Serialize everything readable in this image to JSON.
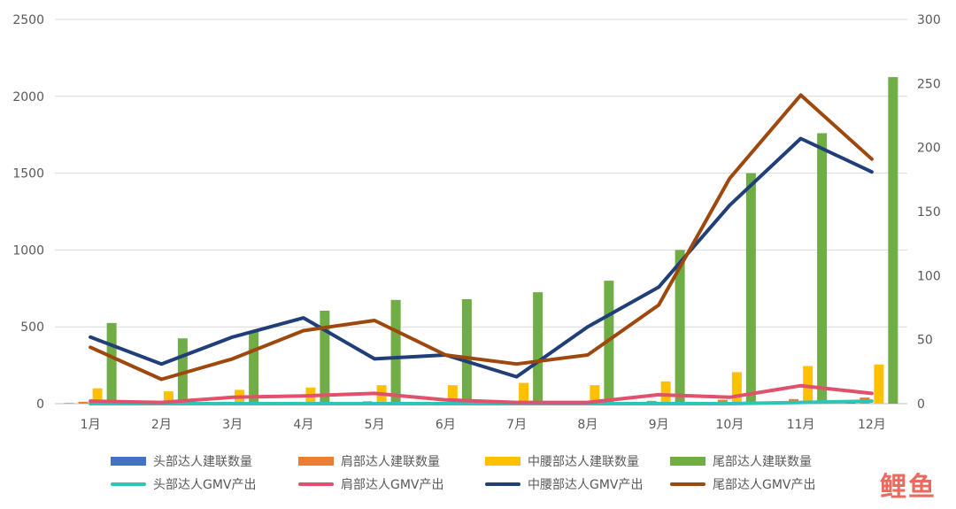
{
  "chart_data": {
    "type": "bar",
    "categories": [
      "1月",
      "2月",
      "3月",
      "4月",
      "5月",
      "6月",
      "7月",
      "8月",
      "9月",
      "10月",
      "11月",
      "12月"
    ],
    "y_left": {
      "ticks": [
        "0",
        "500",
        "1000",
        "1500",
        "2000",
        "2500"
      ],
      "lim": [
        0,
        2500
      ]
    },
    "y_right": {
      "ticks": [
        "0",
        "50",
        "100",
        "150",
        "200",
        "250",
        "300"
      ],
      "lim": [
        0,
        300
      ]
    },
    "grid": true,
    "legend_position": "bottom",
    "bar_series": [
      {
        "name": "头部达人建联数量",
        "color": "#4472C4",
        "values": [
          3,
          2,
          3,
          3,
          3,
          3,
          2,
          3,
          4,
          5,
          8,
          12
        ]
      },
      {
        "name": "肩部达人建联数量",
        "color": "#ED7D31",
        "values": [
          12,
          8,
          12,
          12,
          15,
          12,
          10,
          12,
          18,
          25,
          30,
          40
        ]
      },
      {
        "name": "中腰部达人建联数量",
        "color": "#FFC000",
        "values": [
          100,
          80,
          90,
          105,
          120,
          120,
          135,
          120,
          145,
          205,
          245,
          255
        ]
      },
      {
        "name": "尾部达人建联数量",
        "color": "#70AD47",
        "values": [
          525,
          425,
          475,
          605,
          675,
          680,
          725,
          800,
          1000,
          1500,
          1760,
          2125
        ]
      }
    ],
    "line_series": [
      {
        "name": "头部达人GMV产出",
        "color": "#2EC4B6",
        "values": [
          0,
          0,
          0,
          0,
          0,
          0,
          0,
          0,
          0,
          0,
          1,
          2
        ]
      },
      {
        "name": "肩部达人GMV产出",
        "color": "#E0516B",
        "values": [
          2,
          1,
          5,
          6,
          8,
          3,
          1,
          1,
          7,
          5,
          14,
          8
        ]
      },
      {
        "name": "中腰部达人GMV产出",
        "color": "#203F78",
        "values": [
          52,
          31,
          52,
          67,
          35,
          38,
          21,
          60,
          91,
          155,
          207,
          181
        ]
      },
      {
        "name": "尾部达人GMV产出",
        "color": "#9E480E",
        "values": [
          44,
          19,
          35,
          57,
          65,
          38,
          31,
          38,
          77,
          176,
          241,
          191
        ]
      }
    ]
  },
  "watermark": "鲤鱼"
}
